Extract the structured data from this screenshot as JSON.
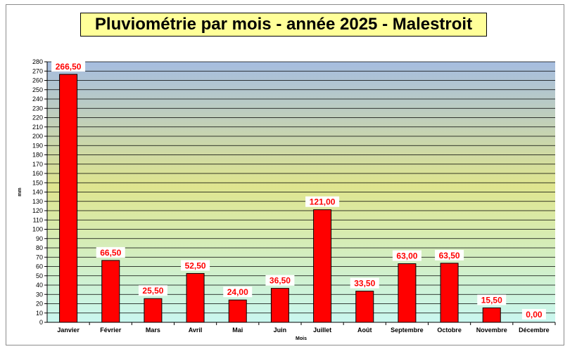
{
  "chart_data": {
    "type": "bar",
    "title": "Pluviométrie par mois - année 2025 - Malestroit",
    "xlabel": "Mois",
    "ylabel": "mm",
    "categories": [
      "Janvier",
      "Février",
      "Mars",
      "Avril",
      "Mai",
      "Juin",
      "Juillet",
      "Août",
      "Septembre",
      "Octobre",
      "Novembre",
      "Décembre"
    ],
    "values": [
      266.5,
      66.5,
      25.5,
      52.5,
      24.0,
      36.5,
      121.0,
      33.5,
      63.0,
      63.5,
      15.5,
      0.0
    ],
    "data_labels": [
      "266,50",
      "66,50",
      "25,50",
      "52,50",
      "24,00",
      "36,50",
      "121,00",
      "33,50",
      "63,00",
      "63,50",
      "15,50",
      "0,00"
    ],
    "ylim": [
      0,
      280
    ],
    "ytick_step": 10,
    "grid": true,
    "legend": "none",
    "colors": {
      "bar": "#ff0000",
      "bar_border": "#000000",
      "plot_top": "#a6bde0",
      "plot_middle": "#dfe58f",
      "plot_bottom": "#c9f7f0",
      "title_background": "#ffff99",
      "label_color": "#ff0000"
    }
  }
}
